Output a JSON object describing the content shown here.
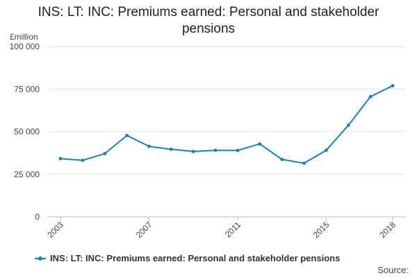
{
  "chart_data": {
    "type": "line",
    "title": "INS: LT: INC: Premiums earned: Personal and stakeholder pensions",
    "ylabel": "£million",
    "xlabel": "",
    "x": [
      2003,
      2004,
      2005,
      2006,
      2007,
      2008,
      2009,
      2010,
      2011,
      2012,
      2013,
      2014,
      2015,
      2016,
      2017,
      2018
    ],
    "series": [
      {
        "name": "INS: LT: INC: Premiums earned: Personal and stakeholder pensions",
        "color": "#1a7fb8",
        "values": [
          34200,
          33200,
          37100,
          47800,
          41400,
          39700,
          38400,
          39100,
          39000,
          42800,
          33700,
          31500,
          39100,
          53800,
          70600,
          77000
        ]
      }
    ],
    "ylim": [
      0,
      100000
    ],
    "yticks": [
      {
        "value": 0,
        "label": "0"
      },
      {
        "value": 25000,
        "label": "25 000"
      },
      {
        "value": 50000,
        "label": "50 000"
      },
      {
        "value": 75000,
        "label": "75 000"
      },
      {
        "value": 100000,
        "label": "100 000"
      }
    ],
    "xticks": [
      {
        "value": 2003,
        "label": "2003"
      },
      {
        "value": 2007,
        "label": "2007"
      },
      {
        "value": 2011,
        "label": "2011"
      },
      {
        "value": 2015,
        "label": "2015"
      },
      {
        "value": 2018,
        "label": "2018"
      }
    ],
    "grid": true,
    "legend_position": "bottom-left"
  },
  "source_label": "Source:"
}
